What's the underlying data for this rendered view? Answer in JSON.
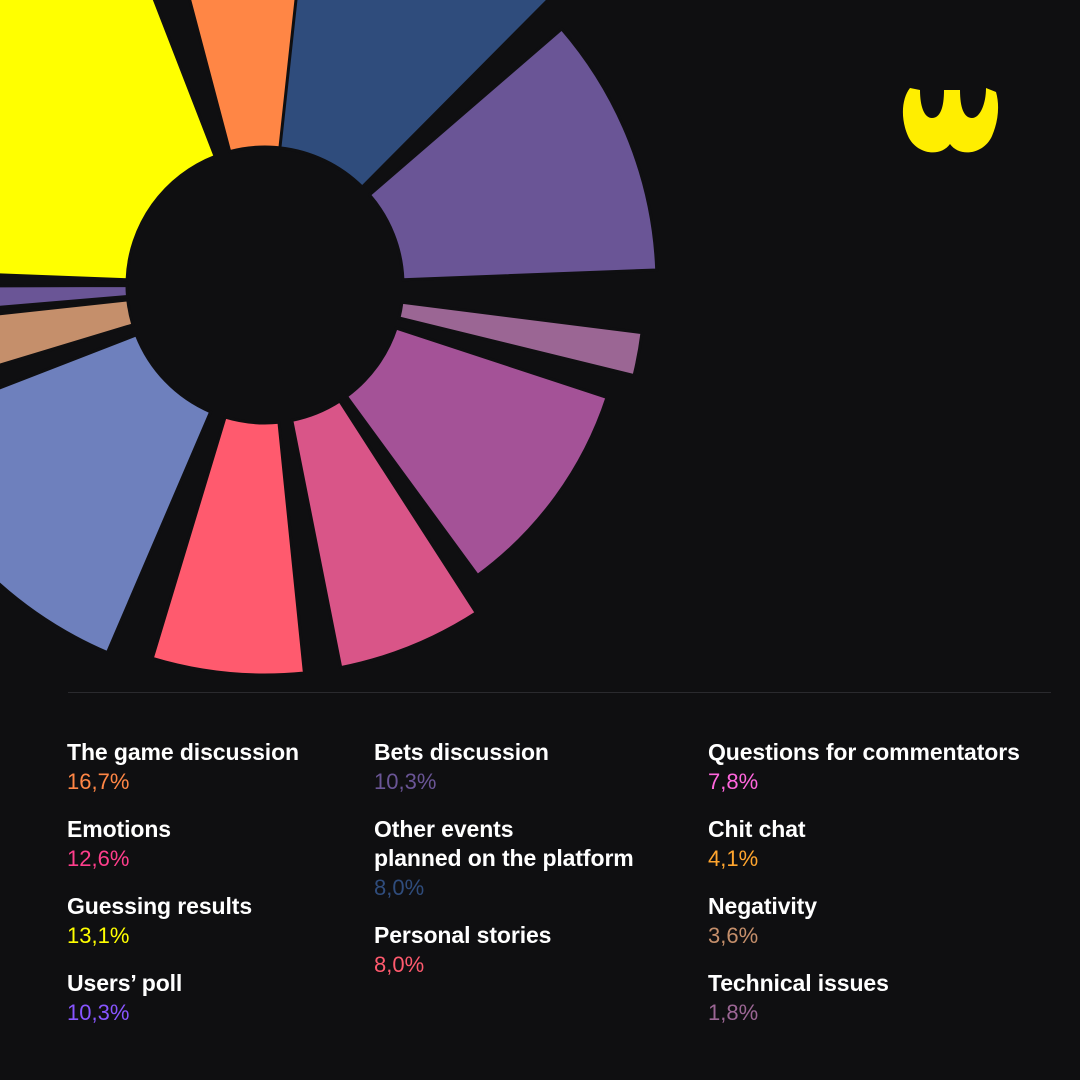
{
  "chart_data": {
    "type": "pie",
    "series": [
      {
        "name": "The game discussion",
        "value": 16.7,
        "value_label": "16,7%",
        "color": "#ff8645",
        "text_color": "#ff8645",
        "column": 0
      },
      {
        "name": "Emotions",
        "value": 12.6,
        "value_label": "12,6%",
        "color": "#ff5a6e",
        "text_color": "#ff3e8c",
        "column": 0
      },
      {
        "name": "Guessing results",
        "value": 13.1,
        "value_label": "13,1%",
        "color": "#ffff00",
        "text_color": "#ffff00",
        "column": 0
      },
      {
        "name": "Users’ poll",
        "value": 10.3,
        "value_label": "10,3%",
        "color": "#6e80bd",
        "text_color": "#8855ff",
        "column": 0
      },
      {
        "name": "Bets discussion",
        "value": 10.3,
        "value_label": "10,3%",
        "color": "#6a5596",
        "text_color": "#6a5596",
        "column": 1
      },
      {
        "name": "Other events\nplanned on the platform",
        "value": 8.0,
        "value_label": "8,0%",
        "color": "#2f4c7c",
        "text_color": "#2f4c7c",
        "column": 1
      },
      {
        "name": "Personal stories",
        "value": 8.0,
        "value_label": "8,0%",
        "color": "#ff5a6e",
        "text_color": "#ff5a6e",
        "column": 1
      },
      {
        "name": "Questions for commentators",
        "value": 7.8,
        "value_label": "7,8%",
        "color": "#d95588",
        "text_color": "#ff66dd",
        "column": 2
      },
      {
        "name": "Chit chat",
        "value": 4.1,
        "value_label": "4,1%",
        "color": "#a45297",
        "text_color": "#ffa52e",
        "column": 2
      },
      {
        "name": "Negativity",
        "value": 3.6,
        "value_label": "3,6%",
        "color": "#c58f6b",
        "text_color": "#c58f6b",
        "column": 2
      },
      {
        "name": "Technical issues",
        "value": 1.8,
        "value_label": "1,8%",
        "color": "#9b6694",
        "text_color": "#9b6694",
        "column": 2
      }
    ]
  },
  "logo": {
    "icon": "yellow-omega-logo-icon",
    "color": "#ffee00"
  }
}
